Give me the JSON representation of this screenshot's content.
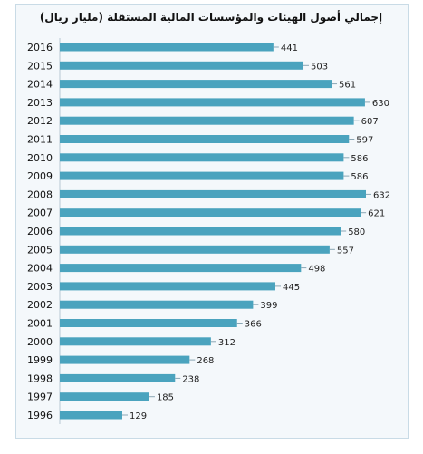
{
  "chart_data": {
    "type": "bar",
    "orientation": "horizontal",
    "title": "إجمالي أصول الهيئات والمؤسسات المالية المستقلة (مليار ريال)",
    "categories": [
      "2016",
      "2015",
      "2014",
      "2013",
      "2012",
      "2011",
      "2010",
      "2009",
      "2008",
      "2007",
      "2006",
      "2005",
      "2004",
      "2003",
      "2002",
      "2001",
      "2000",
      "1999",
      "1998",
      "1997",
      "1996"
    ],
    "values": [
      441,
      503,
      561,
      630,
      607,
      597,
      586,
      586,
      632,
      621,
      580,
      557,
      498,
      445,
      399,
      366,
      312,
      268,
      238,
      185,
      129
    ],
    "data_labels": [
      "441",
      "503",
      "561",
      "630",
      "607",
      "597",
      "586",
      "586",
      "632",
      "621",
      "580",
      "557",
      "498",
      "445",
      "399",
      "366",
      "312",
      "268",
      "238",
      "185",
      "129"
    ],
    "bar_color": "#4aa3be",
    "grid": false
  }
}
